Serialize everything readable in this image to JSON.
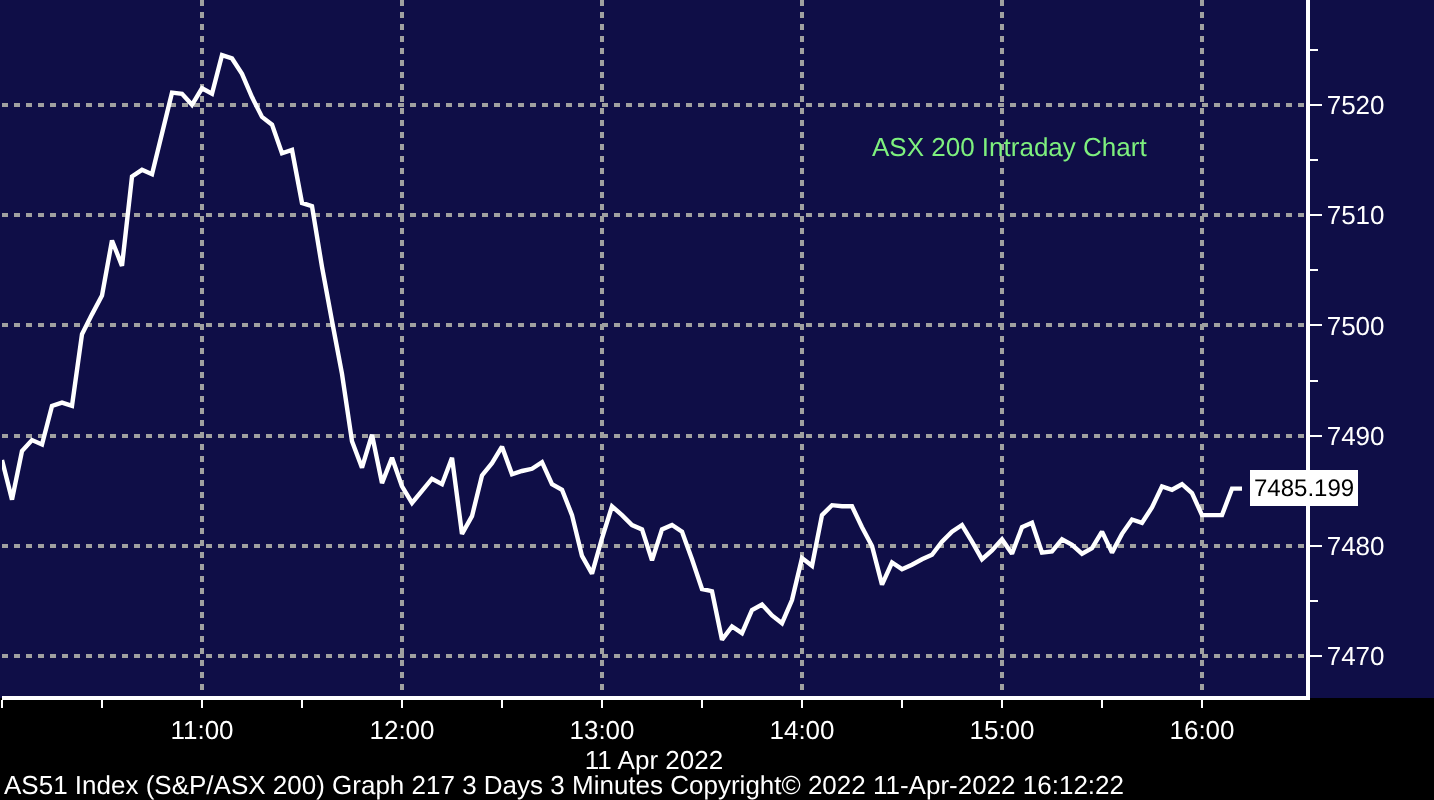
{
  "chart_data": {
    "type": "line",
    "xlabel": "11 Apr 2022",
    "annotations": [
      "ASX 200 Intraday Chart",
      "AS51 Index (S&P/ASX 200) Graph 217 3 Days 3 Minutes Copyright© 2022 11-Apr-2022 16:12:22"
    ],
    "x": [
      10,
      10.05,
      10.1,
      10.15,
      10.2,
      10.25,
      10.3,
      10.35,
      10.4,
      10.45,
      10.5,
      10.55,
      10.6,
      10.65,
      10.7,
      10.75,
      10.8,
      10.85,
      10.9,
      10.95,
      11,
      11.05,
      11.1,
      11.15,
      11.2,
      11.25,
      11.3,
      11.35,
      11.4,
      11.45,
      11.5,
      11.55,
      11.6,
      11.65,
      11.7,
      11.75,
      11.8,
      11.85,
      11.9,
      11.95,
      12,
      12.05,
      12.1,
      12.15,
      12.2,
      12.25,
      12.3,
      12.35,
      12.4,
      12.45,
      12.5,
      12.55,
      12.6,
      12.65,
      12.7,
      12.75,
      12.8,
      12.85,
      12.9,
      12.95,
      13,
      13.05,
      13.1,
      13.15,
      13.2,
      13.25,
      13.3,
      13.35,
      13.4,
      13.45,
      13.5,
      13.55,
      13.6,
      13.65,
      13.7,
      13.75,
      13.8,
      13.85,
      13.9,
      13.95,
      14,
      14.05,
      14.1,
      14.15,
      14.2,
      14.25,
      14.3,
      14.35,
      14.4,
      14.45,
      14.5,
      14.55,
      14.6,
      14.65,
      14.7,
      14.75,
      14.8,
      14.85,
      14.9,
      14.95,
      15,
      15.05,
      15.1,
      15.15,
      15.2,
      15.25,
      15.3,
      15.35,
      15.4,
      15.45,
      15.5,
      15.55,
      15.6,
      15.65,
      15.7,
      15.75,
      15.8,
      15.85,
      15.9,
      15.95,
      16,
      16.05,
      16.1,
      16.15,
      16.2
    ],
    "series": [
      {
        "color": "#ffffff",
        "values": [
          7487.8,
          7484.2,
          7488.6,
          7489.6,
          7489.2,
          7492.7,
          7493.0,
          7492.7,
          7499.2,
          7501.0,
          7502.7,
          7507.7,
          7505.4,
          7513.5,
          7514.1,
          7513.7,
          7517.4,
          7521.1,
          7521.0,
          7520.0,
          7521.5,
          7521.0,
          7524.5,
          7524.2,
          7522.8,
          7520.7,
          7518.9,
          7518.2,
          7515.6,
          7515.9,
          7511.1,
          7510.8,
          7505.3,
          7500.4,
          7495.6,
          7489.5,
          7487.1,
          7490.1,
          7485.7,
          7488.0,
          7485.4,
          7483.9,
          7485.0,
          7486.1,
          7485.6,
          7488.0,
          7481.1,
          7482.7,
          7486.4,
          7487.5,
          7489.0,
          7486.5,
          7486.8,
          7487.0,
          7487.6,
          7485.6,
          7485.1,
          7482.8,
          7479.1,
          7477.5,
          7480.7,
          7483.6,
          7482.8,
          7481.9,
          7481.5,
          7478.7,
          7481.5,
          7481.9,
          7481.3,
          7478.8,
          7476.1,
          7475.9,
          7471.5,
          7472.7,
          7472.1,
          7474.2,
          7474.7,
          7473.7,
          7473.0,
          7475.1,
          7478.9,
          7478.2,
          7482.8,
          7483.7,
          7483.6,
          7483.6,
          7481.7,
          7480.0,
          7476.5,
          7478.5,
          7477.9,
          7478.3,
          7478.8,
          7479.2,
          7480.4,
          7481.3,
          7481.9,
          7480.4,
          7478.8,
          7479.6,
          7480.6,
          7479.3,
          7481.7,
          7482.1,
          7479.4,
          7479.5,
          7480.6,
          7480.1,
          7479.3,
          7479.8,
          7481.3,
          7479.4,
          7481.1,
          7482.4,
          7482.1,
          7483.5,
          7485.4,
          7485.1,
          7485.6,
          7484.8,
          7482.8,
          7482.8,
          7482.8,
          7485.2,
          7485.199
        ],
        "value_labels": [
          null,
          null,
          null,
          null,
          null,
          null,
          null,
          null,
          null,
          null,
          null,
          null,
          null,
          null,
          null,
          null,
          null,
          null,
          null,
          null,
          null,
          null,
          null,
          null,
          null,
          null,
          null,
          null,
          null,
          null,
          null,
          null,
          null,
          null,
          null,
          null,
          null,
          null,
          null,
          null,
          null,
          null,
          null,
          null,
          null,
          null,
          null,
          null,
          null,
          null,
          null,
          null,
          null,
          null,
          null,
          null,
          null,
          null,
          null,
          null,
          null,
          null,
          null,
          null,
          null,
          null,
          null,
          null,
          null,
          null,
          null,
          null,
          null,
          null,
          null,
          null,
          null,
          null,
          null,
          null,
          null,
          null,
          null,
          null,
          null,
          null,
          null,
          null,
          null,
          null,
          null,
          null,
          null,
          null,
          null,
          null,
          null,
          null,
          null,
          null,
          null,
          null,
          null,
          null,
          null,
          null,
          null,
          null,
          null,
          null,
          null,
          null,
          null,
          null,
          null,
          null,
          null,
          null,
          null,
          null,
          null,
          null,
          null,
          null,
          "7485.199"
        ]
      }
    ],
    "xlim": [
      10,
      16.52
    ],
    "xticks": [
      {
        "value": 10,
        "label": null
      },
      {
        "value": 10.5,
        "label": null
      },
      {
        "value": 11,
        "label": "11:00"
      },
      {
        "value": 11.5,
        "label": null
      },
      {
        "value": 12,
        "label": "12:00"
      },
      {
        "value": 12.5,
        "label": null
      },
      {
        "value": 13,
        "label": "13:00"
      },
      {
        "value": 13.5,
        "label": null
      },
      {
        "value": 14,
        "label": "14:00"
      },
      {
        "value": 14.5,
        "label": null
      },
      {
        "value": 15,
        "label": "15:00"
      },
      {
        "value": 15.5,
        "label": null
      },
      {
        "value": 16,
        "label": "16:00"
      }
    ],
    "ylim": [
      7466.4,
      7529.5
    ],
    "yticks": [
      7470,
      {
        "value": 7475,
        "label": null
      },
      7480,
      {
        "value": 7485,
        "label": null
      },
      7490,
      {
        "value": 7495,
        "label": null
      },
      7500,
      {
        "value": 7505,
        "label": null
      },
      7510,
      {
        "value": 7515,
        "label": null
      },
      7520,
      {
        "value": 7525,
        "label": null
      }
    ],
    "grid": true
  }
}
